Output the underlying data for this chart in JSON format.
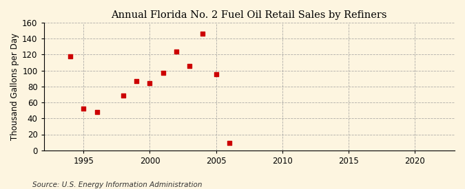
{
  "title": "Annual Florida No. 2 Fuel Oil Retail Sales by Refiners",
  "ylabel": "Thousand Gallons per Day",
  "source_text": "Source: U.S. Energy Information Administration",
  "data_points": [
    [
      1994,
      118
    ],
    [
      1995,
      52
    ],
    [
      1996,
      48
    ],
    [
      1998,
      69
    ],
    [
      1999,
      87
    ],
    [
      2000,
      84
    ],
    [
      2001,
      97
    ],
    [
      2002,
      124
    ],
    [
      2003,
      106
    ],
    [
      2004,
      146
    ],
    [
      2005,
      95
    ],
    [
      2006,
      9
    ]
  ],
  "marker_color": "#cc0000",
  "marker": "s",
  "marker_size": 18,
  "background_color": "#fdf5e0",
  "plot_bg_color": "#fdf5e0",
  "grid_color": "#999999",
  "xlim": [
    1992,
    2023
  ],
  "ylim": [
    0,
    160
  ],
  "xticks": [
    1995,
    2000,
    2005,
    2010,
    2015,
    2020
  ],
  "yticks": [
    0,
    20,
    40,
    60,
    80,
    100,
    120,
    140,
    160
  ],
  "title_fontsize": 10.5,
  "label_fontsize": 8.5,
  "tick_fontsize": 8.5,
  "source_fontsize": 7.5
}
